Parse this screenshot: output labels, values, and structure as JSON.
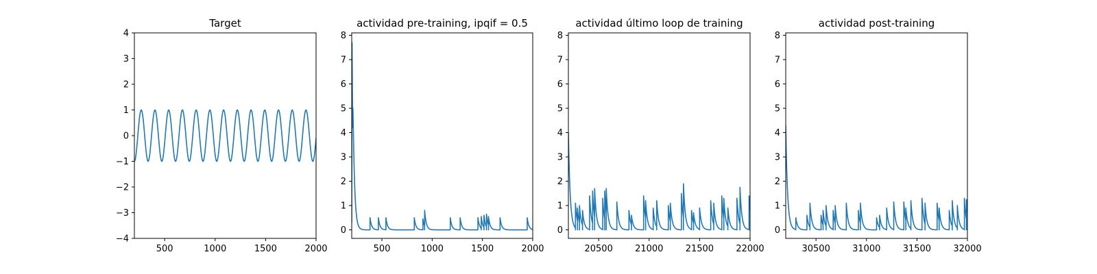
{
  "colors": {
    "series": "#1f77b4",
    "axes": "#000000",
    "background": "#ffffff"
  },
  "chart_data": [
    {
      "type": "line",
      "title": "Target",
      "xlim": [
        200,
        2000
      ],
      "ylim": [
        -4,
        4
      ],
      "xticks": [
        500,
        1000,
        1500,
        2000
      ],
      "yticks": [
        -4,
        -3,
        -2,
        -1,
        0,
        1,
        2,
        3,
        4
      ],
      "grid": false,
      "series": [
        {
          "kind": "sine",
          "x_start": 200,
          "x_end": 2000,
          "period": 136,
          "amplitude": 1,
          "phase_min_at": 200
        }
      ]
    },
    {
      "type": "line",
      "title": "actividad pre-training, ipqif = 0.5",
      "xlim": [
        200,
        2000
      ],
      "ylim": [
        -0.35,
        8.1
      ],
      "xticks": [
        500,
        1000,
        1500,
        2000
      ],
      "yticks": [
        0,
        1,
        2,
        3,
        4,
        5,
        6,
        7,
        8
      ],
      "grid": false,
      "series": [
        {
          "kind": "spikes",
          "x_start": 200,
          "x_end": 2000,
          "initial": [
            [
              200,
              0.3
            ],
            [
              203,
              7.7
            ],
            [
              206,
              6.0
            ],
            [
              209,
              4.2
            ],
            [
              212,
              5.0
            ],
            [
              216,
              4.2
            ]
          ],
          "tau": 16,
          "spikes": [
            [
              382,
              0.5
            ],
            [
              465,
              0.5
            ],
            [
              540,
              0.5
            ],
            [
              822,
              0.5
            ],
            [
              908,
              0.45
            ],
            [
              925,
              0.8
            ],
            [
              1180,
              0.5
            ],
            [
              1278,
              0.5
            ],
            [
              1455,
              0.5
            ],
            [
              1488,
              0.55
            ],
            [
              1515,
              0.6
            ],
            [
              1540,
              0.65
            ],
            [
              1560,
              0.55
            ],
            [
              1675,
              0.5
            ],
            [
              1945,
              0.5
            ]
          ]
        }
      ]
    },
    {
      "type": "line",
      "title": "actividad último loop de training",
      "xlim": [
        20200,
        22000
      ],
      "ylim": [
        -0.35,
        8.1
      ],
      "xticks": [
        20500,
        21000,
        21500,
        22000
      ],
      "yticks": [
        0,
        1,
        2,
        3,
        4,
        5,
        6,
        7,
        8
      ],
      "grid": false,
      "series": [
        {
          "kind": "spikes",
          "x_start": 20200,
          "x_end": 22000,
          "initial": [
            [
              20200,
              4.0
            ]
          ],
          "tau": 18,
          "spikes": [
            [
              20270,
              1.1
            ],
            [
              20290,
              0.9
            ],
            [
              20310,
              1.0
            ],
            [
              20340,
              0.8
            ],
            [
              20410,
              1.4
            ],
            [
              20440,
              1.6
            ],
            [
              20460,
              1.7
            ],
            [
              20540,
              1.3
            ],
            [
              20560,
              1.6
            ],
            [
              20575,
              1.7
            ],
            [
              20680,
              1.15
            ],
            [
              20800,
              0.8
            ],
            [
              20825,
              0.6
            ],
            [
              20945,
              1.4
            ],
            [
              20965,
              1.2
            ],
            [
              21040,
              0.9
            ],
            [
              21075,
              1.2
            ],
            [
              21190,
              1.0
            ],
            [
              21210,
              1.1
            ],
            [
              21320,
              1.5
            ],
            [
              21340,
              1.9
            ],
            [
              21420,
              0.8
            ],
            [
              21440,
              0.7
            ],
            [
              21500,
              0.9
            ],
            [
              21610,
              1.2
            ],
            [
              21640,
              1.1
            ],
            [
              21720,
              1.4
            ],
            [
              21740,
              1.3
            ],
            [
              21780,
              0.9
            ],
            [
              21870,
              1.3
            ],
            [
              21900,
              1.75
            ],
            [
              21990,
              1.4
            ]
          ]
        }
      ]
    },
    {
      "type": "line",
      "title": "actividad post-training",
      "xlim": [
        30200,
        32000
      ],
      "ylim": [
        -0.35,
        8.1
      ],
      "xticks": [
        30500,
        31000,
        31500,
        32000
      ],
      "yticks": [
        0,
        1,
        2,
        3,
        4,
        5,
        6,
        7,
        8
      ],
      "grid": false,
      "series": [
        {
          "kind": "spikes",
          "x_start": 30200,
          "x_end": 32000,
          "initial": [
            [
              30200,
              4.3
            ]
          ],
          "tau": 18,
          "spikes": [
            [
              30300,
              0.5
            ],
            [
              30410,
              0.6
            ],
            [
              30440,
              1.1
            ],
            [
              30550,
              0.6
            ],
            [
              30570,
              0.8
            ],
            [
              30600,
              1.0
            ],
            [
              30670,
              0.8
            ],
            [
              30690,
              1.0
            ],
            [
              30800,
              1.1
            ],
            [
              30920,
              0.8
            ],
            [
              30940,
              1.1
            ],
            [
              31100,
              0.5
            ],
            [
              31130,
              0.6
            ],
            [
              31200,
              0.9
            ],
            [
              31270,
              1.15
            ],
            [
              31370,
              1.15
            ],
            [
              31390,
              0.9
            ],
            [
              31440,
              1.2
            ],
            [
              31550,
              1.3
            ],
            [
              31580,
              1.1
            ],
            [
              31700,
              1.1
            ],
            [
              31720,
              0.9
            ],
            [
              31820,
              0.8
            ],
            [
              31850,
              1.2
            ],
            [
              31900,
              1.0
            ],
            [
              31970,
              1.3
            ],
            [
              31990,
              1.25
            ]
          ]
        }
      ]
    }
  ]
}
